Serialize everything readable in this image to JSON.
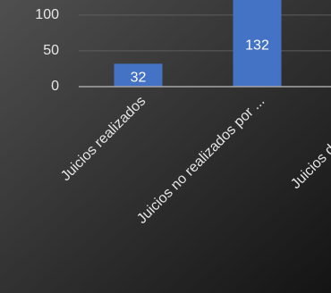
{
  "chart_data": {
    "type": "bar",
    "categories": [
      "Juicios realizados",
      "Juicios no realizados por ...",
      "Juicios desconvoca"
    ],
    "values": [
      32,
      132,
      null
    ],
    "color": "#4472c4",
    "ylim": [
      0,
      121
    ],
    "yticks": [
      0,
      50,
      100
    ],
    "grid": true
  }
}
